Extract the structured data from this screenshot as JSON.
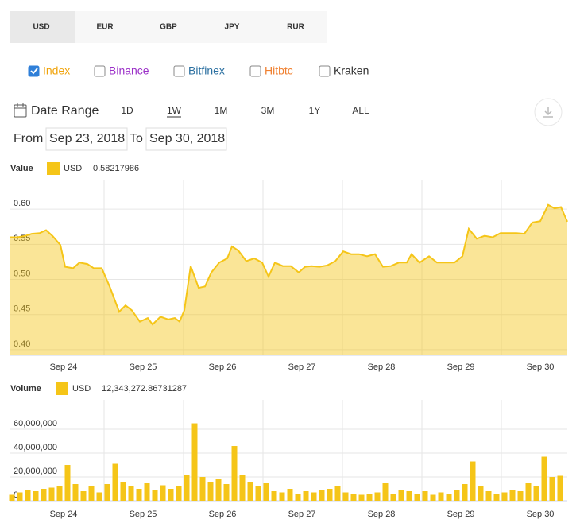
{
  "currency_tabs": {
    "labels": [
      "USD",
      "EUR",
      "GBP",
      "JPY",
      "RUR"
    ],
    "selected": 0
  },
  "exchanges": [
    {
      "label": "Index",
      "color": "#f0a30a",
      "checked": true
    },
    {
      "label": "Binance",
      "color": "#9b30c8",
      "checked": false
    },
    {
      "label": "Bitfinex",
      "color": "#2a6fa0",
      "checked": false
    },
    {
      "label": "Hitbtc",
      "color": "#f08030",
      "checked": false
    },
    {
      "label": "Kraken",
      "color": "#333333",
      "checked": false
    }
  ],
  "date_range": {
    "label": "Date Range",
    "buttons": [
      "1D",
      "1W",
      "1M",
      "3M",
      "1Y",
      "ALL"
    ],
    "active": 1,
    "from_label": "From",
    "from": "Sep 23, 2018",
    "to_label": "To",
    "to": "Sep 30, 2018"
  },
  "chart_data": [
    {
      "type": "area",
      "legend_title": "Value",
      "legend_value": "0.58217986",
      "x": [
        0.32,
        0.42,
        0.52,
        0.6,
        0.7,
        0.78,
        0.86,
        0.96,
        1.02,
        1.12,
        1.2,
        1.3,
        1.38,
        1.48,
        1.58,
        1.7,
        1.78,
        1.86,
        1.96,
        2.06,
        2.12,
        2.22,
        2.32,
        2.4,
        2.46,
        2.52,
        2.6,
        2.7,
        2.78,
        2.86,
        2.96,
        3.06,
        3.12,
        3.2,
        3.3,
        3.4,
        3.5,
        3.58,
        3.66,
        3.76,
        3.86,
        3.96,
        4.04,
        4.12,
        4.22,
        4.32,
        4.42,
        4.52,
        4.62,
        4.72,
        4.82,
        4.92,
        5.02,
        5.12,
        5.22,
        5.32,
        5.38,
        5.48,
        5.6,
        5.7,
        5.8,
        5.92,
        6.02,
        6.1,
        6.2,
        6.3,
        6.4,
        6.5,
        6.6,
        6.7,
        6.8,
        6.9,
        7.0,
        7.1,
        7.18,
        7.26,
        7.34
      ],
      "series": [
        {
          "name": "USD",
          "color": "#f5c518",
          "values": [
            0.56,
            0.56,
            0.562,
            0.565,
            0.566,
            0.57,
            0.562,
            0.549,
            0.518,
            0.516,
            0.524,
            0.522,
            0.516,
            0.516,
            0.49,
            0.454,
            0.463,
            0.456,
            0.44,
            0.445,
            0.436,
            0.447,
            0.443,
            0.445,
            0.44,
            0.456,
            0.519,
            0.488,
            0.49,
            0.51,
            0.524,
            0.53,
            0.547,
            0.541,
            0.526,
            0.53,
            0.524,
            0.504,
            0.524,
            0.519,
            0.519,
            0.51,
            0.518,
            0.519,
            0.518,
            0.52,
            0.526,
            0.54,
            0.536,
            0.536,
            0.533,
            0.536,
            0.518,
            0.519,
            0.524,
            0.524,
            0.536,
            0.524,
            0.533,
            0.524,
            0.524,
            0.524,
            0.533,
            0.572,
            0.558,
            0.562,
            0.56,
            0.566,
            0.566,
            0.566,
            0.565,
            0.581,
            0.583,
            0.606,
            0.601,
            0.603,
            0.58217986
          ]
        }
      ],
      "xlim": [
        0.32,
        7.34
      ],
      "xticks": [
        {
          "value": 1,
          "label": "Sep 24"
        },
        {
          "value": 2,
          "label": "Sep 25"
        },
        {
          "value": 3,
          "label": "Sep 26"
        },
        {
          "value": 4,
          "label": "Sep 27"
        },
        {
          "value": 5,
          "label": "Sep 28"
        },
        {
          "value": 6,
          "label": "Sep 29"
        },
        {
          "value": 7,
          "label": "Sep 30"
        }
      ],
      "ylim": [
        0.392,
        0.642
      ],
      "yticks": [
        {
          "value": 0.4,
          "label": "0.40"
        },
        {
          "value": 0.45,
          "label": "0.45"
        },
        {
          "value": 0.5,
          "label": "0.50"
        },
        {
          "value": 0.55,
          "label": "0.55"
        },
        {
          "value": 0.6,
          "label": "0.60"
        }
      ],
      "grid": true
    },
    {
      "type": "bar",
      "legend_title": "Volume",
      "legend_value": "12,343,272.86731287",
      "x": [
        0.35,
        0.45,
        0.55,
        0.65,
        0.75,
        0.85,
        0.95,
        1.05,
        1.15,
        1.25,
        1.35,
        1.45,
        1.55,
        1.65,
        1.75,
        1.85,
        1.95,
        2.05,
        2.15,
        2.25,
        2.35,
        2.45,
        2.55,
        2.65,
        2.75,
        2.85,
        2.95,
        3.05,
        3.15,
        3.25,
        3.35,
        3.45,
        3.55,
        3.65,
        3.75,
        3.85,
        3.95,
        4.05,
        4.15,
        4.25,
        4.35,
        4.45,
        4.55,
        4.65,
        4.75,
        4.85,
        4.95,
        5.05,
        5.15,
        5.25,
        5.35,
        5.45,
        5.55,
        5.65,
        5.75,
        5.85,
        5.95,
        6.05,
        6.15,
        6.25,
        6.35,
        6.45,
        6.55,
        6.65,
        6.75,
        6.85,
        6.95,
        7.05,
        7.15,
        7.25
      ],
      "series": [
        {
          "name": "USD",
          "color": "#f5c518",
          "values": [
            5000000,
            7000000,
            9000000,
            8000000,
            10000000,
            11000000,
            12000000,
            30000000,
            14000000,
            8000000,
            12000000,
            7000000,
            14000000,
            31000000,
            16000000,
            12000000,
            10000000,
            15000000,
            9000000,
            13000000,
            10000000,
            12000000,
            22000000,
            65000000,
            20000000,
            16000000,
            18000000,
            14000000,
            46000000,
            22000000,
            16000000,
            12000000,
            15000000,
            8000000,
            7000000,
            10000000,
            6000000,
            8000000,
            7000000,
            9000000,
            10000000,
            12000000,
            7000000,
            6000000,
            5000000,
            6000000,
            7000000,
            15000000,
            6000000,
            9000000,
            8000000,
            6000000,
            8000000,
            5000000,
            7000000,
            6000000,
            9000000,
            14000000,
            33000000,
            12000000,
            8000000,
            6000000,
            7000000,
            9000000,
            8000000,
            15000000,
            12000000,
            37000000,
            20000000,
            21000000
          ]
        }
      ],
      "xlim": [
        0.32,
        7.34
      ],
      "xticks": [
        {
          "value": 1,
          "label": "Sep 24"
        },
        {
          "value": 2,
          "label": "Sep 25"
        },
        {
          "value": 3,
          "label": "Sep 26"
        },
        {
          "value": 4,
          "label": "Sep 27"
        },
        {
          "value": 5,
          "label": "Sep 28"
        },
        {
          "value": 6,
          "label": "Sep 29"
        },
        {
          "value": 7,
          "label": "Sep 30"
        }
      ],
      "ylim": [
        0,
        84700000
      ],
      "yticks": [
        0,
        {
          "value": 20000000,
          "label": "20,000,000"
        },
        {
          "value": 40000000,
          "label": "40,000,000"
        },
        {
          "value": 60000000,
          "label": "60,000,000"
        }
      ],
      "grid": true
    }
  ]
}
